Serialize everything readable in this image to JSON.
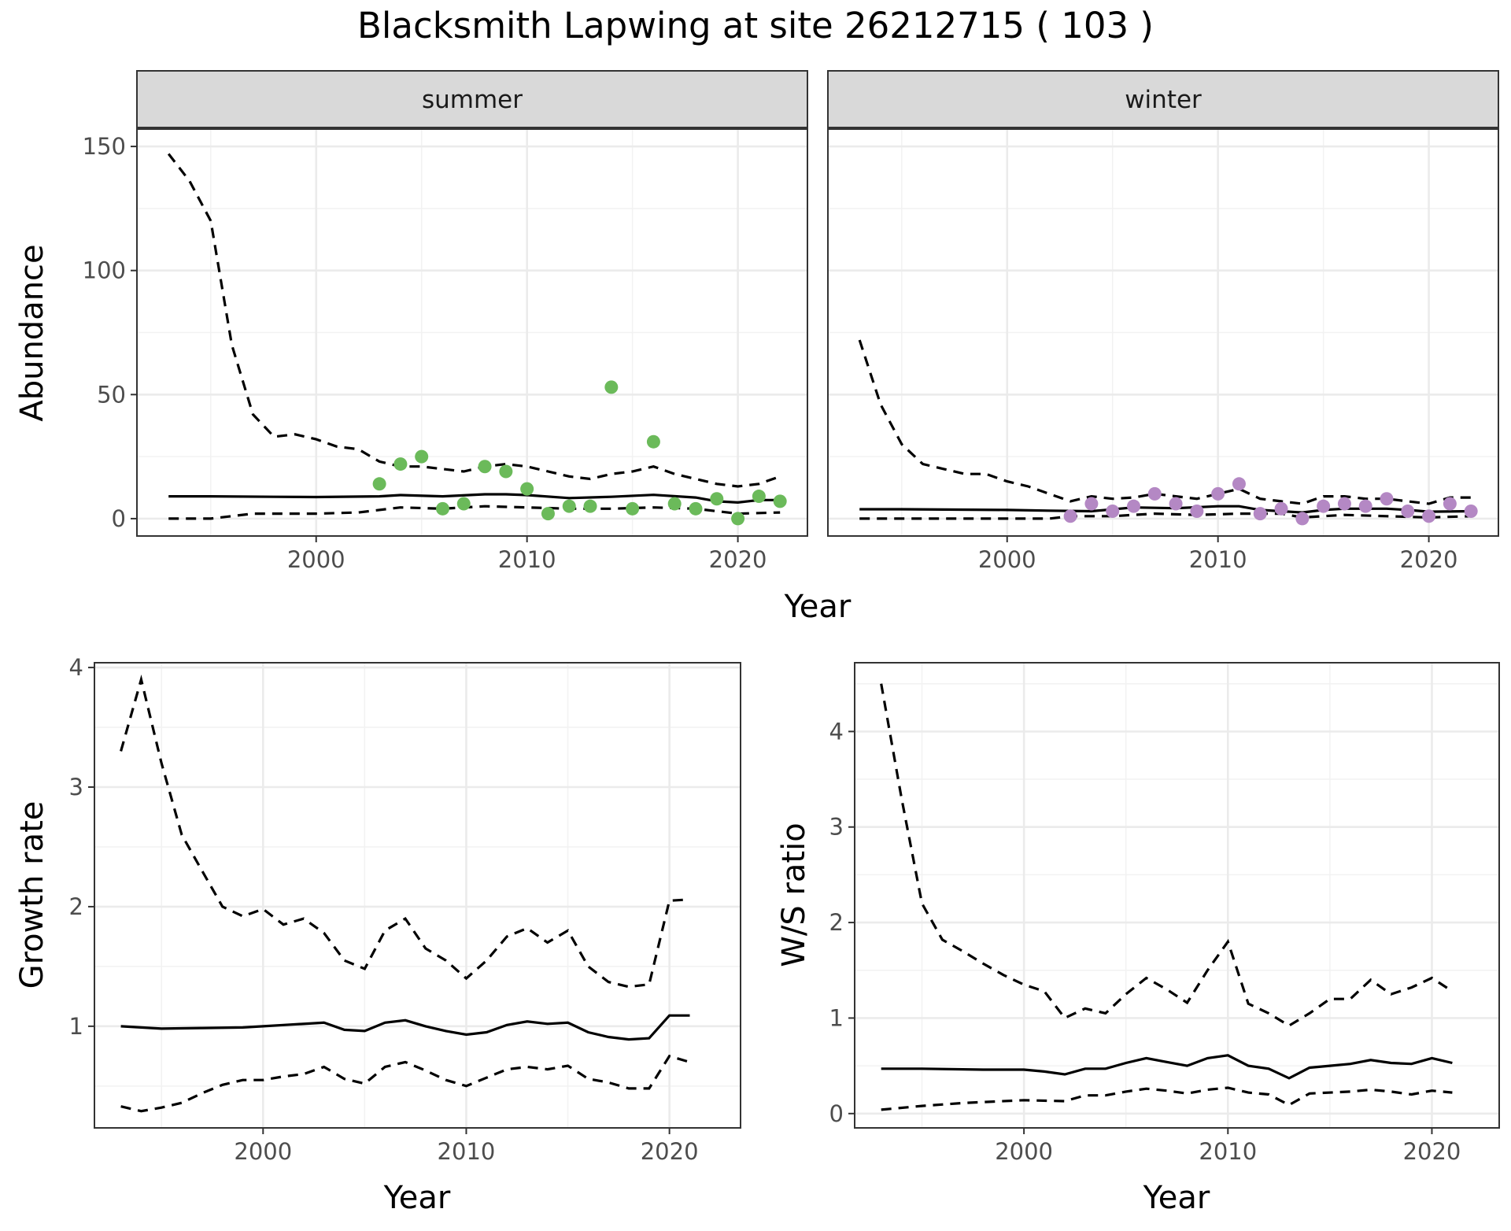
{
  "title": "Blacksmith Lapwing at site 26212715 ( 103 )",
  "chart_data": [
    {
      "type": "line",
      "panel": "summer",
      "facet_label": "summer",
      "xlabel": "Year",
      "ylabel": "Abundance",
      "xlim": [
        1991.5,
        2023.3
      ],
      "ylim": [
        -7,
        157
      ],
      "x_ticks": [
        2000,
        2010,
        2020
      ],
      "y_ticks": [
        0,
        50,
        100,
        150
      ],
      "grid": true,
      "point_color": "#6BBA5A",
      "mean": [
        [
          1993,
          9
        ],
        [
          1995,
          9
        ],
        [
          1998,
          8.8
        ],
        [
          2000,
          8.7
        ],
        [
          2003,
          9
        ],
        [
          2004,
          9.5
        ],
        [
          2006,
          9
        ],
        [
          2008,
          9.8
        ],
        [
          2009,
          9.8
        ],
        [
          2010,
          9.5
        ],
        [
          2012,
          8.3
        ],
        [
          2014,
          8.8
        ],
        [
          2016,
          9.6
        ],
        [
          2018,
          8.5
        ],
        [
          2019,
          7
        ],
        [
          2020,
          6.5
        ],
        [
          2021,
          7.5
        ],
        [
          2022,
          7.5
        ]
      ],
      "upper": [
        [
          1993,
          147
        ],
        [
          1994,
          136
        ],
        [
          1995,
          120
        ],
        [
          1996,
          70
        ],
        [
          1997,
          42
        ],
        [
          1998,
          33
        ],
        [
          1999,
          34
        ],
        [
          2000,
          32
        ],
        [
          2001,
          29
        ],
        [
          2002,
          28
        ],
        [
          2003,
          23
        ],
        [
          2004,
          21
        ],
        [
          2005,
          21
        ],
        [
          2006,
          20
        ],
        [
          2007,
          19
        ],
        [
          2008,
          21
        ],
        [
          2009,
          22
        ],
        [
          2010,
          21
        ],
        [
          2011,
          19
        ],
        [
          2012,
          17
        ],
        [
          2013,
          16
        ],
        [
          2014,
          18
        ],
        [
          2015,
          19
        ],
        [
          2016,
          21
        ],
        [
          2017,
          18
        ],
        [
          2018,
          16
        ],
        [
          2019,
          14
        ],
        [
          2020,
          13
        ],
        [
          2021,
          14
        ],
        [
          2022,
          17
        ]
      ],
      "lower": [
        [
          1993,
          0
        ],
        [
          1995,
          0
        ],
        [
          1997,
          2
        ],
        [
          2000,
          2
        ],
        [
          2002,
          2.5
        ],
        [
          2004,
          4.5
        ],
        [
          2006,
          4
        ],
        [
          2008,
          5
        ],
        [
          2010,
          4.5
        ],
        [
          2012,
          4
        ],
        [
          2014,
          4
        ],
        [
          2016,
          4.5
        ],
        [
          2018,
          4
        ],
        [
          2019,
          3
        ],
        [
          2020,
          2
        ],
        [
          2022,
          2.5
        ]
      ],
      "points": [
        [
          2003,
          14
        ],
        [
          2004,
          22
        ],
        [
          2005,
          25
        ],
        [
          2006,
          4
        ],
        [
          2007,
          6
        ],
        [
          2008,
          21
        ],
        [
          2009,
          19
        ],
        [
          2010,
          12
        ],
        [
          2011,
          2
        ],
        [
          2012,
          5
        ],
        [
          2013,
          5
        ],
        [
          2014,
          53
        ],
        [
          2015,
          4
        ],
        [
          2016,
          31
        ],
        [
          2017,
          6
        ],
        [
          2018,
          4
        ],
        [
          2019,
          8
        ],
        [
          2020,
          0
        ],
        [
          2021,
          9
        ],
        [
          2022,
          7
        ]
      ]
    },
    {
      "type": "line",
      "panel": "winter",
      "facet_label": "winter",
      "xlabel": "Year",
      "ylabel": "Abundance",
      "xlim": [
        1991.5,
        2023.3
      ],
      "ylim": [
        -7,
        157
      ],
      "x_ticks": [
        2000,
        2010,
        2020
      ],
      "y_ticks": [
        0,
        50,
        100,
        150
      ],
      "grid": true,
      "point_color": "#B488C4",
      "mean": [
        [
          1993,
          3.8
        ],
        [
          1995,
          3.8
        ],
        [
          2000,
          3.5
        ],
        [
          2002,
          3.2
        ],
        [
          2004,
          3
        ],
        [
          2006,
          4.5
        ],
        [
          2008,
          4.2
        ],
        [
          2010,
          5
        ],
        [
          2011,
          5
        ],
        [
          2012,
          3.5
        ],
        [
          2014,
          2.5
        ],
        [
          2015,
          3.5
        ],
        [
          2016,
          4
        ],
        [
          2018,
          4
        ],
        [
          2019,
          3.5
        ],
        [
          2020,
          2.8
        ],
        [
          2022,
          3
        ]
      ],
      "upper": [
        [
          1993,
          72
        ],
        [
          1994,
          46
        ],
        [
          1995,
          30
        ],
        [
          1996,
          22
        ],
        [
          1997,
          20
        ],
        [
          1998,
          18
        ],
        [
          1999,
          18
        ],
        [
          2000,
          15
        ],
        [
          2001,
          13
        ],
        [
          2002,
          10
        ],
        [
          2003,
          7
        ],
        [
          2004,
          9
        ],
        [
          2005,
          8
        ],
        [
          2006,
          8.5
        ],
        [
          2007,
          10
        ],
        [
          2008,
          9
        ],
        [
          2009,
          8
        ],
        [
          2010,
          10
        ],
        [
          2011,
          12
        ],
        [
          2012,
          8
        ],
        [
          2013,
          7
        ],
        [
          2014,
          6
        ],
        [
          2015,
          9
        ],
        [
          2016,
          9
        ],
        [
          2017,
          8
        ],
        [
          2018,
          8
        ],
        [
          2019,
          7
        ],
        [
          2020,
          6
        ],
        [
          2021,
          8.5
        ],
        [
          2022,
          8.5
        ]
      ],
      "lower": [
        [
          1993,
          0
        ],
        [
          2000,
          0
        ],
        [
          2002,
          0
        ],
        [
          2003,
          1
        ],
        [
          2005,
          1
        ],
        [
          2007,
          2
        ],
        [
          2009,
          1.5
        ],
        [
          2011,
          2
        ],
        [
          2013,
          2
        ],
        [
          2014,
          0.5
        ],
        [
          2016,
          1.5
        ],
        [
          2018,
          1
        ],
        [
          2020,
          0.5
        ],
        [
          2022,
          1
        ]
      ],
      "points": [
        [
          2003,
          1
        ],
        [
          2004,
          6
        ],
        [
          2005,
          3
        ],
        [
          2006,
          5
        ],
        [
          2007,
          10
        ],
        [
          2008,
          6
        ],
        [
          2009,
          3
        ],
        [
          2010,
          10
        ],
        [
          2011,
          14
        ],
        [
          2012,
          2
        ],
        [
          2013,
          4
        ],
        [
          2014,
          0
        ],
        [
          2015,
          5
        ],
        [
          2016,
          6
        ],
        [
          2017,
          5
        ],
        [
          2018,
          8
        ],
        [
          2019,
          3
        ],
        [
          2020,
          1
        ],
        [
          2021,
          6
        ],
        [
          2022,
          3
        ]
      ]
    },
    {
      "type": "line",
      "panel": "growth",
      "xlabel": "Year",
      "ylabel": "Growth rate",
      "xlim": [
        1991.7,
        2023.5
      ],
      "ylim": [
        0.15,
        4.04
      ],
      "x_ticks": [
        2000,
        2010,
        2020
      ],
      "y_ticks": [
        1,
        2,
        3,
        4
      ],
      "grid": true,
      "mean": [
        [
          1993,
          1.0
        ],
        [
          1994,
          0.99
        ],
        [
          1995,
          0.98
        ],
        [
          1997,
          0.985
        ],
        [
          1999,
          0.99
        ],
        [
          2000,
          1.0
        ],
        [
          2001,
          1.01
        ],
        [
          2003,
          1.03
        ],
        [
          2004,
          0.97
        ],
        [
          2005,
          0.96
        ],
        [
          2006,
          1.03
        ],
        [
          2007,
          1.05
        ],
        [
          2008,
          1.0
        ],
        [
          2009,
          0.96
        ],
        [
          2010,
          0.93
        ],
        [
          2011,
          0.95
        ],
        [
          2012,
          1.01
        ],
        [
          2013,
          1.04
        ],
        [
          2014,
          1.02
        ],
        [
          2015,
          1.03
        ],
        [
          2016,
          0.95
        ],
        [
          2017,
          0.91
        ],
        [
          2018,
          0.89
        ],
        [
          2019,
          0.9
        ],
        [
          2020,
          1.09
        ],
        [
          2021,
          1.09
        ]
      ],
      "upper": [
        [
          1993,
          3.3
        ],
        [
          1994,
          3.9
        ],
        [
          1995,
          3.2
        ],
        [
          1996,
          2.6
        ],
        [
          1997,
          2.3
        ],
        [
          1998,
          2.0
        ],
        [
          1999,
          1.92
        ],
        [
          2000,
          1.98
        ],
        [
          2001,
          1.85
        ],
        [
          2002,
          1.9
        ],
        [
          2003,
          1.78
        ],
        [
          2004,
          1.55
        ],
        [
          2005,
          1.48
        ],
        [
          2006,
          1.8
        ],
        [
          2007,
          1.9
        ],
        [
          2008,
          1.65
        ],
        [
          2009,
          1.55
        ],
        [
          2010,
          1.4
        ],
        [
          2011,
          1.55
        ],
        [
          2012,
          1.75
        ],
        [
          2013,
          1.82
        ],
        [
          2014,
          1.7
        ],
        [
          2015,
          1.8
        ],
        [
          2016,
          1.5
        ],
        [
          2017,
          1.37
        ],
        [
          2018,
          1.33
        ],
        [
          2019,
          1.35
        ],
        [
          2020,
          2.05
        ],
        [
          2021,
          2.06
        ]
      ],
      "lower": [
        [
          1993,
          0.33
        ],
        [
          1994,
          0.29
        ],
        [
          1995,
          0.32
        ],
        [
          1996,
          0.36
        ],
        [
          1997,
          0.44
        ],
        [
          1998,
          0.51
        ],
        [
          1999,
          0.55
        ],
        [
          2000,
          0.55
        ],
        [
          2001,
          0.58
        ],
        [
          2002,
          0.6
        ],
        [
          2003,
          0.66
        ],
        [
          2004,
          0.56
        ],
        [
          2005,
          0.52
        ],
        [
          2006,
          0.66
        ],
        [
          2007,
          0.7
        ],
        [
          2008,
          0.63
        ],
        [
          2009,
          0.55
        ],
        [
          2010,
          0.5
        ],
        [
          2011,
          0.57
        ],
        [
          2012,
          0.64
        ],
        [
          2013,
          0.66
        ],
        [
          2014,
          0.64
        ],
        [
          2015,
          0.67
        ],
        [
          2016,
          0.56
        ],
        [
          2017,
          0.53
        ],
        [
          2018,
          0.48
        ],
        [
          2019,
          0.48
        ],
        [
          2020,
          0.75
        ],
        [
          2021,
          0.7
        ]
      ]
    },
    {
      "type": "line",
      "panel": "ratio",
      "xlabel": "Year",
      "ylabel": "W/S ratio",
      "xlim": [
        1991.7,
        2023.3
      ],
      "ylim": [
        -0.15,
        4.72
      ],
      "x_ticks": [
        2000,
        2010,
        2020
      ],
      "y_ticks": [
        0,
        1,
        2,
        3,
        4
      ],
      "grid": true,
      "mean": [
        [
          1993,
          0.47
        ],
        [
          1995,
          0.47
        ],
        [
          1998,
          0.46
        ],
        [
          2000,
          0.46
        ],
        [
          2001,
          0.44
        ],
        [
          2002,
          0.41
        ],
        [
          2003,
          0.47
        ],
        [
          2004,
          0.47
        ],
        [
          2005,
          0.53
        ],
        [
          2006,
          0.58
        ],
        [
          2007,
          0.54
        ],
        [
          2008,
          0.5
        ],
        [
          2009,
          0.58
        ],
        [
          2010,
          0.61
        ],
        [
          2011,
          0.5
        ],
        [
          2012,
          0.47
        ],
        [
          2013,
          0.37
        ],
        [
          2014,
          0.48
        ],
        [
          2015,
          0.5
        ],
        [
          2016,
          0.52
        ],
        [
          2017,
          0.56
        ],
        [
          2018,
          0.53
        ],
        [
          2019,
          0.52
        ],
        [
          2020,
          0.58
        ],
        [
          2021,
          0.53
        ]
      ],
      "upper": [
        [
          1993,
          4.5
        ],
        [
          1994,
          3.3
        ],
        [
          1995,
          2.2
        ],
        [
          1996,
          1.82
        ],
        [
          1997,
          1.7
        ],
        [
          1998,
          1.57
        ],
        [
          1999,
          1.45
        ],
        [
          2000,
          1.35
        ],
        [
          2001,
          1.28
        ],
        [
          2002,
          1.0
        ],
        [
          2003,
          1.1
        ],
        [
          2004,
          1.05
        ],
        [
          2005,
          1.25
        ],
        [
          2006,
          1.42
        ],
        [
          2007,
          1.3
        ],
        [
          2008,
          1.16
        ],
        [
          2009,
          1.5
        ],
        [
          2010,
          1.8
        ],
        [
          2011,
          1.15
        ],
        [
          2012,
          1.05
        ],
        [
          2013,
          0.92
        ],
        [
          2014,
          1.05
        ],
        [
          2015,
          1.2
        ],
        [
          2016,
          1.2
        ],
        [
          2017,
          1.4
        ],
        [
          2018,
          1.25
        ],
        [
          2019,
          1.32
        ],
        [
          2020,
          1.42
        ],
        [
          2021,
          1.28
        ]
      ],
      "lower": [
        [
          1993,
          0.04
        ],
        [
          1995,
          0.08
        ],
        [
          1997,
          0.11
        ],
        [
          2000,
          0.14
        ],
        [
          2002,
          0.13
        ],
        [
          2003,
          0.19
        ],
        [
          2004,
          0.19
        ],
        [
          2005,
          0.23
        ],
        [
          2006,
          0.26
        ],
        [
          2007,
          0.24
        ],
        [
          2008,
          0.21
        ],
        [
          2009,
          0.25
        ],
        [
          2010,
          0.27
        ],
        [
          2011,
          0.22
        ],
        [
          2012,
          0.2
        ],
        [
          2013,
          0.09
        ],
        [
          2014,
          0.21
        ],
        [
          2016,
          0.23
        ],
        [
          2017,
          0.25
        ],
        [
          2018,
          0.23
        ],
        [
          2019,
          0.2
        ],
        [
          2020,
          0.24
        ],
        [
          2021,
          0.22
        ]
      ]
    }
  ]
}
